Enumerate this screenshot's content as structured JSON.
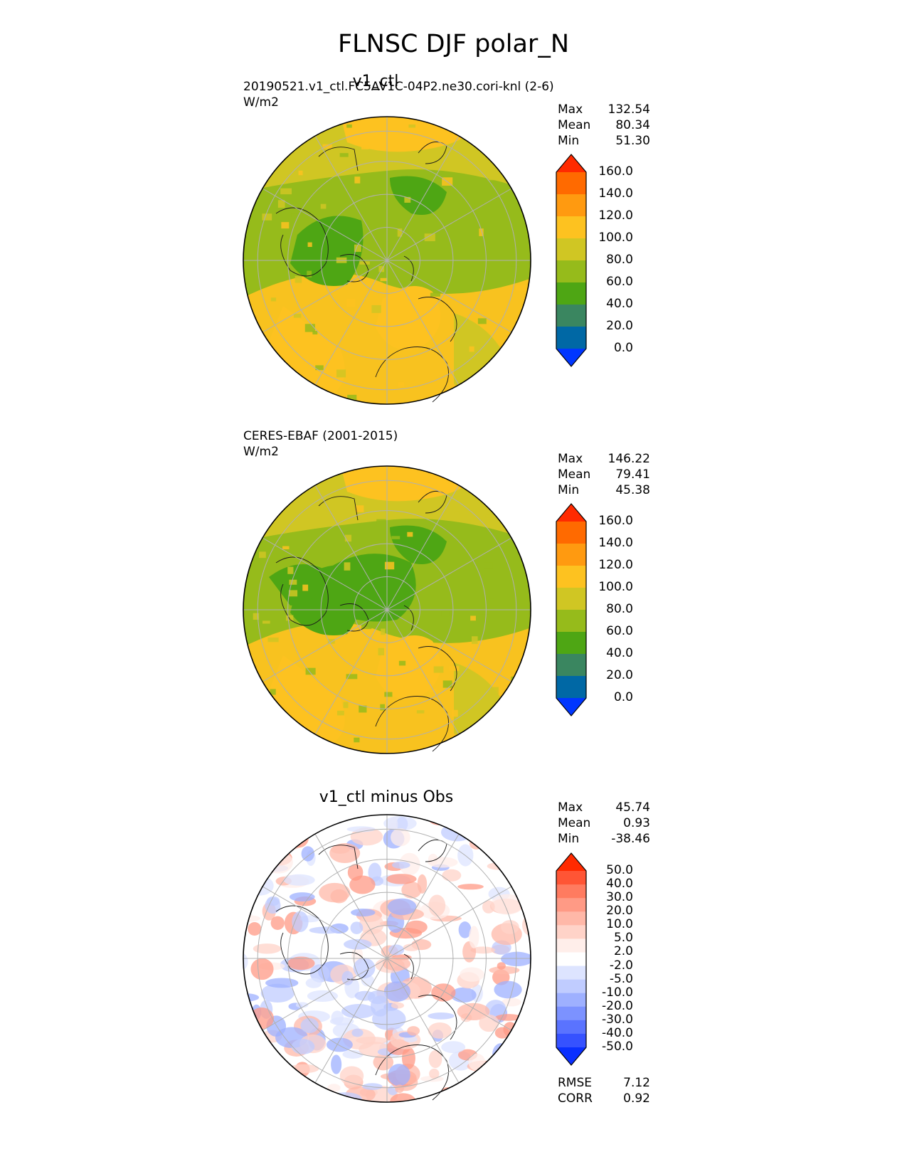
{
  "title": "FLNSC DJF polar_N",
  "panels": [
    {
      "title": "v1_ctl",
      "run_label": "20190521.v1_ctl.FC5AV1C-04P2.ne30.cori-knl (2-6)",
      "units": "W/m2",
      "stats": [
        {
          "label": "Max",
          "value": "132.54"
        },
        {
          "label": "Mean",
          "value": "80.34"
        },
        {
          "label": "Min",
          "value": "51.30"
        }
      ],
      "colorbar": {
        "labels": [
          "160.0",
          "140.0",
          "120.0",
          "100.0",
          "80.0",
          "60.0",
          "40.0",
          "20.0",
          "0.0"
        ],
        "colors": [
          "#ff2a00",
          "#ff6a00",
          "#ff9a10",
          "#fdc220",
          "#d0c623",
          "#96bb1b",
          "#4ea614",
          "#3a8660",
          "#0068a5",
          "#0036ff"
        ]
      }
    },
    {
      "title": "",
      "run_label": "CERES-EBAF (2001-2015)",
      "units": "W/m2",
      "stats": [
        {
          "label": "Max",
          "value": "146.22"
        },
        {
          "label": "Mean",
          "value": "79.41"
        },
        {
          "label": "Min",
          "value": "45.38"
        }
      ],
      "colorbar": {
        "labels": [
          "160.0",
          "140.0",
          "120.0",
          "100.0",
          "80.0",
          "60.0",
          "40.0",
          "20.0",
          "0.0"
        ],
        "colors": [
          "#ff2a00",
          "#ff6a00",
          "#ff9a10",
          "#fdc220",
          "#d0c623",
          "#96bb1b",
          "#4ea614",
          "#3a8660",
          "#0068a5",
          "#0036ff"
        ]
      }
    },
    {
      "title": "v1_ctl minus Obs",
      "run_label": "",
      "units": "",
      "stats": [
        {
          "label": "Max",
          "value": "45.74"
        },
        {
          "label": "Mean",
          "value": "0.93"
        },
        {
          "label": "Min",
          "value": "-38.46"
        }
      ],
      "colorbar": {
        "labels": [
          "50.0",
          "40.0",
          "30.0",
          "20.0",
          "10.0",
          "5.0",
          "2.0",
          "-2.0",
          "-5.0",
          "-10.0",
          "-20.0",
          "-30.0",
          "-40.0",
          "-50.0"
        ],
        "colors": [
          "#ff2a00",
          "#ff5535",
          "#ff7b60",
          "#ff9a85",
          "#ffb8a8",
          "#ffd3c8",
          "#ffeeea",
          "#ffffff",
          "#dde4ff",
          "#c0ccff",
          "#9eb0ff",
          "#7c92ff",
          "#5a73ff",
          "#3652ff",
          "#0a30ff"
        ]
      },
      "metrics": [
        {
          "label": "RMSE",
          "value": "7.12"
        },
        {
          "label": "CORR",
          "value": "0.92"
        }
      ]
    }
  ]
}
